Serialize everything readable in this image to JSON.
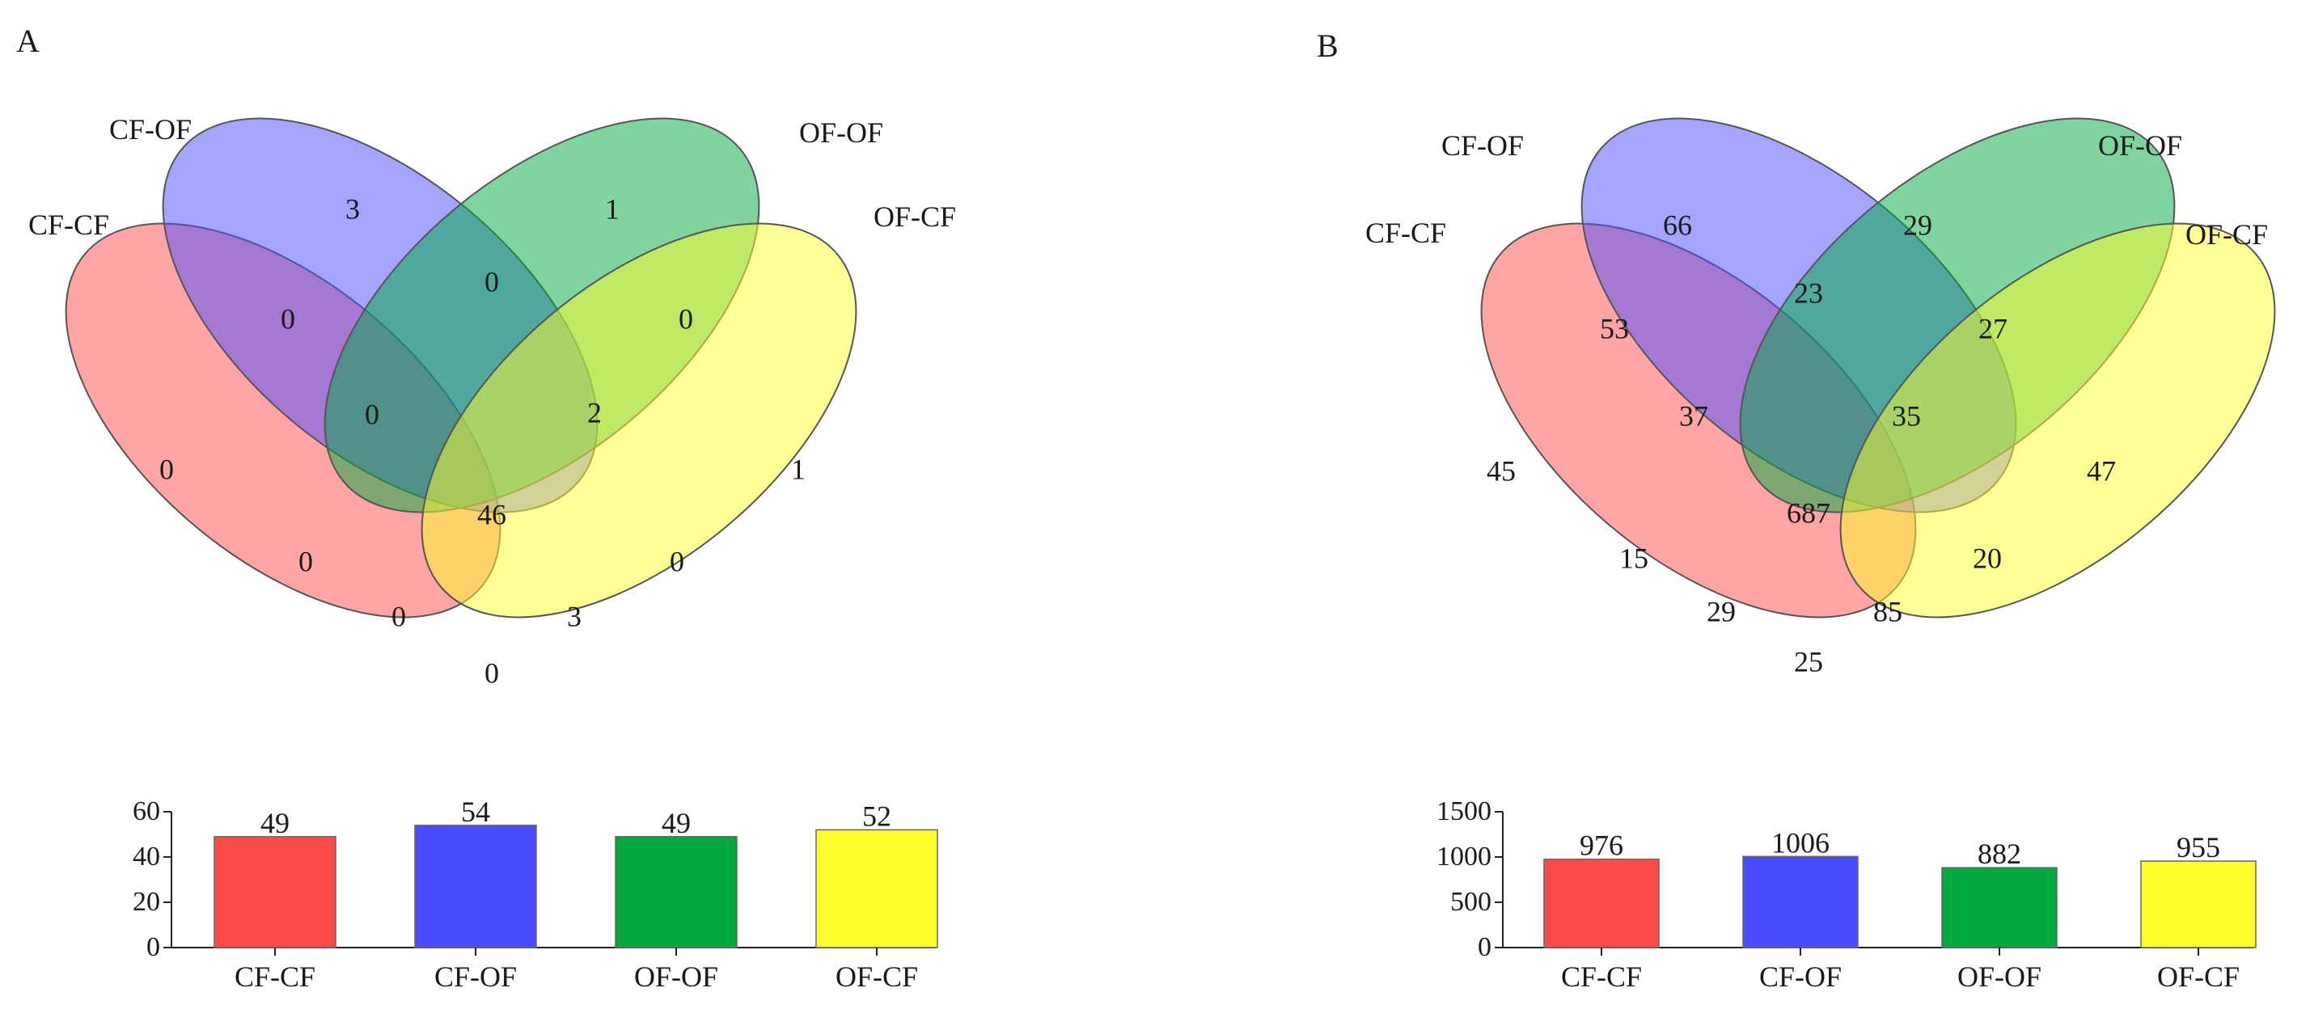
{
  "chart_data": [
    {
      "type": "venn",
      "panel_label": "A",
      "set_labels": [
        "CF-CF",
        "CF-OF",
        "OF-OF",
        "OF-CF"
      ],
      "set_colors": [
        "#ff4b4b",
        "#4b4bff",
        "#00a940",
        "#ffff2e"
      ],
      "regions": {
        "CF-CF": "0",
        "CF-OF": "3",
        "OF-OF": "1",
        "OF-CF": "1",
        "CF-CF&CF-OF": "0",
        "CF-OF&OF-OF": "0",
        "OF-OF&OF-CF": "0",
        "CF-CF&OF-OF": "0",
        "CF-OF&OF-CF": "0",
        "CF-CF&OF-CF": "0",
        "CF-CF&CF-OF&OF-OF": "0",
        "CF-OF&OF-OF&OF-CF": "2",
        "CF-CF&OF-OF&OF-CF": "0",
        "CF-CF&CF-OF&OF-CF": "3",
        "all": "46"
      },
      "bar": {
        "type": "bar",
        "categories": [
          "CF-CF",
          "CF-OF",
          "OF-OF",
          "OF-CF"
        ],
        "values": [
          49,
          54,
          49,
          52
        ],
        "value_labels": [
          "49",
          "54",
          "49",
          "52"
        ],
        "colors": [
          "#ff4b4b",
          "#4b4bff",
          "#00a940",
          "#ffff2e"
        ],
        "ylim": [
          0,
          60
        ],
        "yticks": [
          0,
          20,
          40,
          60
        ],
        "ytick_labels": [
          "0",
          "20",
          "40",
          "60"
        ]
      }
    },
    {
      "type": "venn",
      "panel_label": "B",
      "set_labels": [
        "CF-CF",
        "CF-OF",
        "OF-OF",
        "OF-CF"
      ],
      "set_colors": [
        "#ff4b4b",
        "#4b4bff",
        "#00a940",
        "#ffff2e"
      ],
      "regions": {
        "CF-CF": "45",
        "CF-OF": "66",
        "OF-OF": "29",
        "OF-CF": "47",
        "CF-CF&CF-OF": "53",
        "CF-OF&OF-OF": "23",
        "OF-OF&OF-CF": "27",
        "CF-CF&OF-OF": "15",
        "CF-OF&OF-CF": "20",
        "CF-CF&OF-CF": "25",
        "CF-CF&CF-OF&OF-OF": "37",
        "CF-OF&OF-OF&OF-CF": "35",
        "CF-CF&OF-OF&OF-CF": "29",
        "CF-CF&CF-OF&OF-CF": "85",
        "all": "687"
      },
      "bar": {
        "type": "bar",
        "categories": [
          "CF-CF",
          "CF-OF",
          "OF-OF",
          "OF-CF"
        ],
        "values": [
          976,
          1006,
          882,
          955
        ],
        "value_labels": [
          "976",
          "1006",
          "882",
          "955"
        ],
        "colors": [
          "#ff4b4b",
          "#4b4bff",
          "#00a940",
          "#ffff2e"
        ],
        "ylim": [
          0,
          1500
        ],
        "yticks": [
          0,
          500,
          1000,
          1500
        ],
        "ytick_labels": [
          "0",
          "500",
          "1000",
          "1500"
        ]
      }
    }
  ]
}
